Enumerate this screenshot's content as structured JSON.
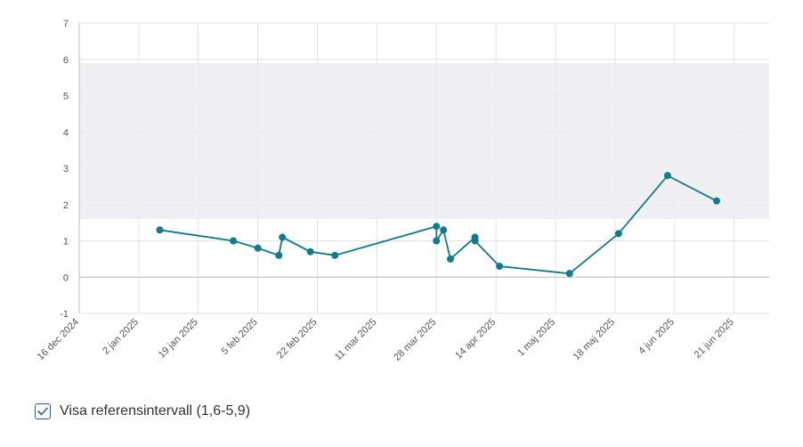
{
  "chart_data": {
    "type": "line",
    "title": "",
    "xlabel": "",
    "ylabel": "",
    "ylim": [
      -1,
      7
    ],
    "yticks": [
      -1,
      0,
      1,
      2,
      3,
      4,
      5,
      6,
      7
    ],
    "xlim": [
      "2024-12-16",
      "2025-07-01"
    ],
    "xticks": [
      {
        "date": "2024-12-16",
        "label": "16 dec 2024"
      },
      {
        "date": "2025-01-02",
        "label": "2 jan 2025"
      },
      {
        "date": "2025-01-19",
        "label": "19 jan 2025"
      },
      {
        "date": "2025-02-05",
        "label": "5 feb 2025"
      },
      {
        "date": "2025-02-22",
        "label": "22 feb 2025"
      },
      {
        "date": "2025-03-11",
        "label": "11 mar 2025"
      },
      {
        "date": "2025-03-28",
        "label": "28 mar 2025"
      },
      {
        "date": "2025-04-14",
        "label": "14 apr 2025"
      },
      {
        "date": "2025-05-01",
        "label": "1 maj 2025"
      },
      {
        "date": "2025-05-18",
        "label": "18 maj 2025"
      },
      {
        "date": "2025-06-04",
        "label": "4 jun 2025"
      },
      {
        "date": "2025-06-21",
        "label": "21 jun 2025"
      }
    ],
    "grid": true,
    "reference_interval": {
      "low": 1.6,
      "high": 5.9,
      "color": "#ececf2"
    },
    "series": [
      {
        "color": "#117a8b",
        "points": [
          {
            "x": "2025-01-08",
            "y": 1.3
          },
          {
            "x": "2025-01-29",
            "y": 1.0
          },
          {
            "x": "2025-02-05",
            "y": 0.8
          },
          {
            "x": "2025-02-11",
            "y": 0.6
          },
          {
            "x": "2025-02-12",
            "y": 1.1
          },
          {
            "x": "2025-02-20",
            "y": 0.7
          },
          {
            "x": "2025-02-27",
            "y": 0.6
          },
          {
            "x": "2025-03-28",
            "y": 1.4
          },
          {
            "x": "2025-03-28",
            "y": 1.0
          },
          {
            "x": "2025-03-30",
            "y": 1.3
          },
          {
            "x": "2025-04-01",
            "y": 0.5
          },
          {
            "x": "2025-04-08",
            "y": 1.1
          },
          {
            "x": "2025-04-08",
            "y": 1.0
          },
          {
            "x": "2025-04-15",
            "y": 0.3
          },
          {
            "x": "2025-05-05",
            "y": 0.1
          },
          {
            "x": "2025-05-19",
            "y": 1.2
          },
          {
            "x": "2025-06-02",
            "y": 2.8
          },
          {
            "x": "2025-06-16",
            "y": 2.1
          }
        ]
      }
    ]
  },
  "ref_toggle": {
    "label": "Visa referensintervall (1,6-5,9)",
    "checked": true
  }
}
